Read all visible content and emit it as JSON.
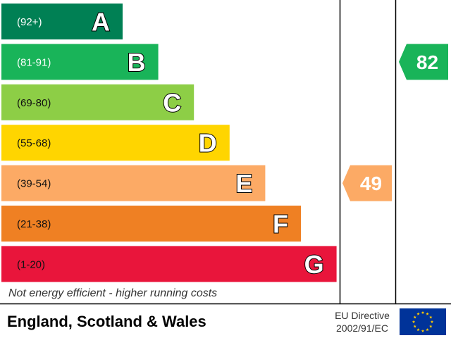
{
  "chart_data": {
    "type": "bar",
    "bands": [
      {
        "letter": "A",
        "range": "(92+)",
        "color": "#008054"
      },
      {
        "letter": "B",
        "range": "(81-91)",
        "color": "#19b459"
      },
      {
        "letter": "C",
        "range": "(69-80)",
        "color": "#8dce46"
      },
      {
        "letter": "D",
        "range": "(55-68)",
        "color": "#ffd500"
      },
      {
        "letter": "E",
        "range": "(39-54)",
        "color": "#fcaa65"
      },
      {
        "letter": "F",
        "range": "(21-38)",
        "color": "#ef8023"
      },
      {
        "letter": "G",
        "range": "(1-20)",
        "color": "#e9153b"
      }
    ],
    "footnote": "Not energy efficient - higher running costs",
    "ratings": [
      {
        "value": "49",
        "band": "E",
        "color": "#fcaa65"
      },
      {
        "value": "82",
        "band": "B",
        "color": "#19b459"
      }
    ]
  },
  "footer": {
    "region": "England, Scotland & Wales",
    "directive_line1": "EU Directive",
    "directive_line2": "2002/91/EC",
    "flag_icon": "eu-flag-icon",
    "flag_color": "#003399",
    "star_color": "#ffcc00"
  }
}
